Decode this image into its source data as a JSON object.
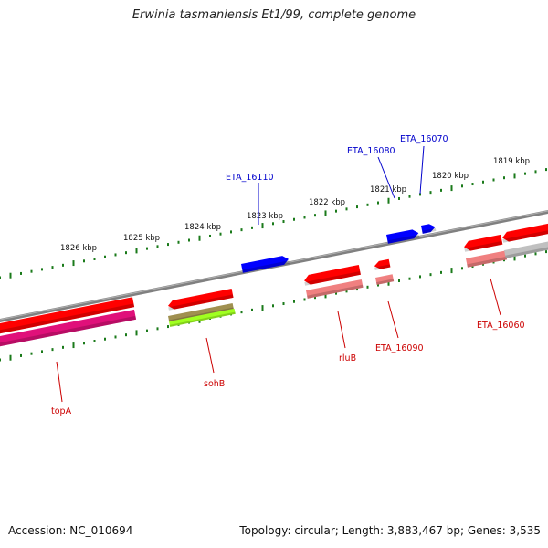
{
  "title": "Erwinia tasmaniensis Et1/99, complete genome",
  "footer": {
    "accession": "Accession: NC_010694",
    "topology": "Topology: circular; Length: 3,883,467 bp; Genes: 3,535"
  },
  "colors": {
    "backbone": "#808080",
    "tick": "#1a7a1a",
    "gene_red": "#ff0000",
    "gene_pink_light": "#f08080",
    "gene_magenta": "#e0107a",
    "gene_blue": "#0000ff",
    "gene_olive": "#a09050",
    "gene_lime": "#a0ff20",
    "gene_grey": "#c0c0c0",
    "label_red": "#cc0000",
    "label_blue": "#0000cc"
  },
  "scale_labels": [
    "1826 kbp",
    "1825 kbp",
    "1824 kbp",
    "1823 kbp",
    "1822 kbp",
    "1821 kbp",
    "1820 kbp",
    "1819 kbp"
  ],
  "gene_labels": [
    {
      "text": "topA",
      "color": "red"
    },
    {
      "text": "sohB",
      "color": "red"
    },
    {
      "text": "rluB",
      "color": "red"
    },
    {
      "text": "ETA_16090",
      "color": "red"
    },
    {
      "text": "ETA_16060",
      "color": "red"
    },
    {
      "text": "ETA_16110",
      "color": "blue"
    },
    {
      "text": "ETA_16080",
      "color": "blue"
    },
    {
      "text": "ETA_16070",
      "color": "blue"
    }
  ]
}
